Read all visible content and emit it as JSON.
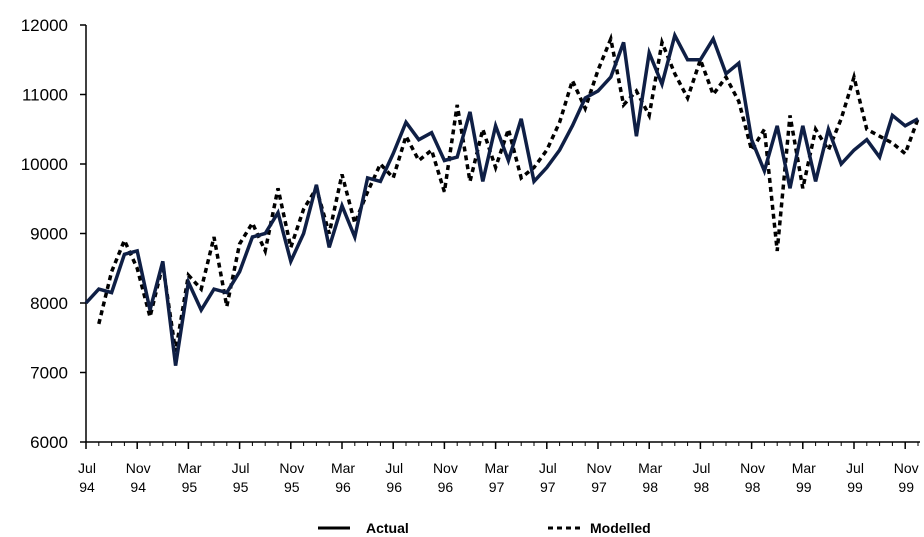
{
  "chart_data": {
    "type": "line",
    "title": "",
    "xlabel": "",
    "ylabel": "",
    "ylim": [
      6000,
      12000
    ],
    "yticks": [
      6000,
      7000,
      8000,
      9000,
      10000,
      11000,
      12000
    ],
    "ytick_labels": [
      "6000",
      "7000",
      "8000",
      "9000",
      "10000",
      "11000",
      "12000"
    ],
    "x_tick_labels": [
      {
        "month": "Jul",
        "year": "94"
      },
      {
        "month": "Nov",
        "year": "94"
      },
      {
        "month": "Mar",
        "year": "95"
      },
      {
        "month": "Jul",
        "year": "95"
      },
      {
        "month": "Nov",
        "year": "95"
      },
      {
        "month": "Mar",
        "year": "96"
      },
      {
        "month": "Jul",
        "year": "96"
      },
      {
        "month": "Nov",
        "year": "96"
      },
      {
        "month": "Mar",
        "year": "97"
      },
      {
        "month": "Jul",
        "year": "97"
      },
      {
        "month": "Nov",
        "year": "97"
      },
      {
        "month": "Mar",
        "year": "98"
      },
      {
        "month": "Jul",
        "year": "98"
      },
      {
        "month": "Nov",
        "year": "98"
      },
      {
        "month": "Mar",
        "year": "99"
      },
      {
        "month": "Jul",
        "year": "99"
      },
      {
        "month": "Nov",
        "year": "99"
      }
    ],
    "x_start": "Jul 94",
    "x_step": "month",
    "grid": false,
    "legend_position": "bottom",
    "series": [
      {
        "name": "Actual",
        "color": "#0f1f45",
        "style": "solid",
        "values": [
          8000,
          8200,
          8150,
          8700,
          8750,
          7900,
          8600,
          7100,
          8300,
          7900,
          8200,
          8150,
          8450,
          8950,
          9000,
          9300,
          8600,
          9000,
          9700,
          8800,
          9400,
          8950,
          9800,
          9750,
          10150,
          10600,
          10350,
          10450,
          10050,
          10100,
          10750,
          9750,
          10550,
          10050,
          10650,
          9750,
          9950,
          10200,
          10550,
          10950,
          11050,
          11250,
          11750,
          10400,
          11600,
          11150,
          11850,
          11500,
          11500,
          11800,
          11300,
          11450,
          10350,
          9900,
          10550,
          9650,
          10550,
          9750,
          10500,
          10000,
          10200,
          10350,
          10100,
          10700,
          10550,
          10650
        ]
      },
      {
        "name": "Modelled",
        "color": "#000000",
        "style": "dotted",
        "values": [
          null,
          7700,
          8450,
          8900,
          8500,
          7800,
          8550,
          7300,
          8400,
          8200,
          8950,
          7950,
          8850,
          9150,
          8750,
          9650,
          8800,
          9350,
          9650,
          9000,
          9850,
          9150,
          9600,
          10000,
          9800,
          10400,
          10050,
          10200,
          9600,
          10850,
          9750,
          10500,
          9950,
          10500,
          9800,
          9950,
          10200,
          10600,
          11200,
          10800,
          11350,
          11800,
          10850,
          11050,
          10700,
          11750,
          11300,
          10950,
          11500,
          11000,
          11250,
          10900,
          10200,
          10500,
          8750,
          10700,
          9650,
          10500,
          10200,
          10650,
          11250,
          10500,
          10400,
          10300,
          10150,
          10650
        ]
      }
    ]
  }
}
